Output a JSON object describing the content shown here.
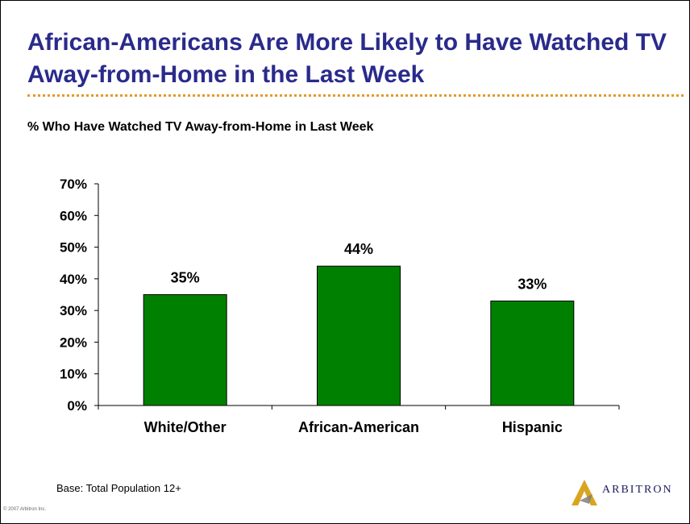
{
  "slide": {
    "title": "African-Americans Are More Likely to Have Watched TV Away-from-Home in the Last Week",
    "base_note": "Base:  Total Population 12+",
    "copyright": "© 2007 Arbitron Inc.",
    "logo_text": "ARBITRON"
  },
  "colors": {
    "title": "#2a2a8c",
    "divider": "#e39a2a",
    "bar": "#008000",
    "logo_gold": "#d9a520",
    "logo_text": "#1b1b5e"
  },
  "chart_data": {
    "type": "bar",
    "title": "% Who Have Watched TV Away-from-Home in Last Week",
    "categories": [
      "White/Other",
      "African-American",
      "Hispanic"
    ],
    "values": [
      35,
      44,
      33
    ],
    "data_labels": [
      "35%",
      "44%",
      "33%"
    ],
    "ylim": [
      0,
      70
    ],
    "yticks": [
      0,
      10,
      20,
      30,
      40,
      50,
      60,
      70
    ],
    "ytick_labels": [
      "0%",
      "10%",
      "20%",
      "30%",
      "40%",
      "50%",
      "60%",
      "70%"
    ],
    "xlabel": "",
    "ylabel": "",
    "grid": false,
    "legend": "none"
  }
}
